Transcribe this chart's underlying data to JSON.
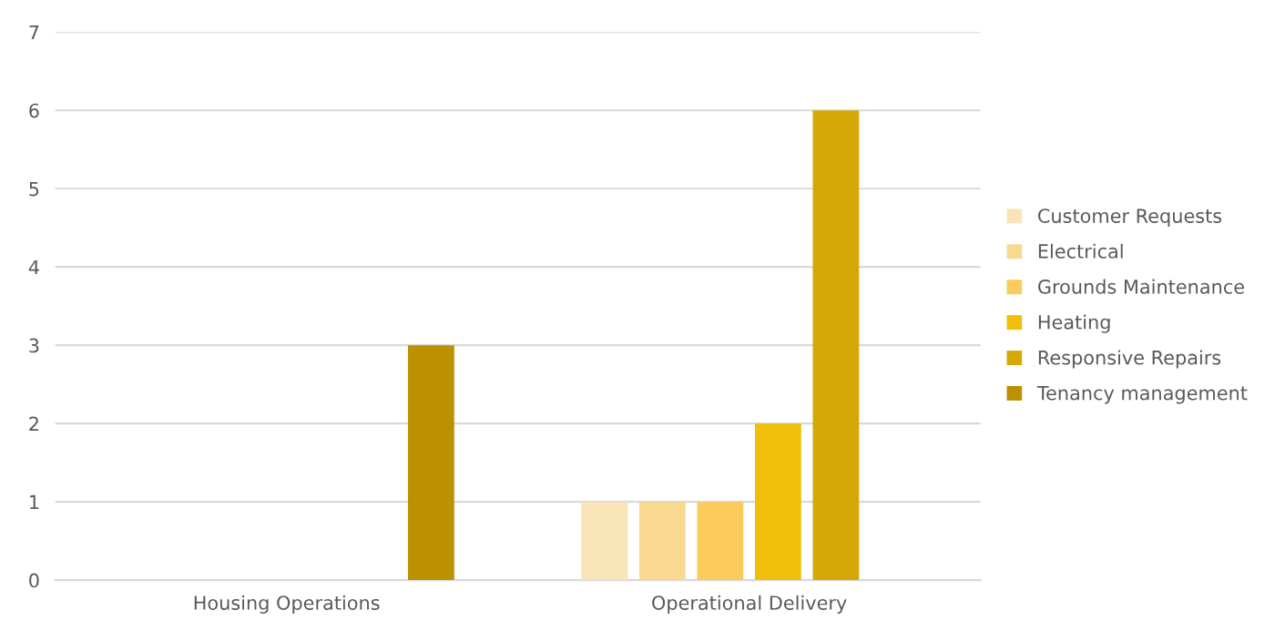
{
  "chart_data": {
    "type": "bar",
    "categories": [
      "Housing Operations",
      "Operational Delivery"
    ],
    "series": [
      {
        "name": "Customer Requests",
        "color": "#f9e4b7",
        "values": [
          null,
          1
        ]
      },
      {
        "name": "Electrical",
        "color": "#f8d98f",
        "values": [
          null,
          1
        ]
      },
      {
        "name": "Grounds Maintenance",
        "color": "#fbcb5c",
        "values": [
          null,
          1
        ]
      },
      {
        "name": "Heating",
        "color": "#f0bf0a",
        "values": [
          null,
          2
        ]
      },
      {
        "name": "Responsive Repairs",
        "color": "#d4a806",
        "values": [
          null,
          6
        ]
      },
      {
        "name": "Tenancy management",
        "color": "#bb9100",
        "values": [
          3,
          null
        ]
      }
    ],
    "ylim": [
      0,
      7
    ],
    "yticks": [
      0,
      1,
      2,
      3,
      4,
      5,
      6,
      7
    ],
    "grid": "y",
    "legend": "right"
  }
}
